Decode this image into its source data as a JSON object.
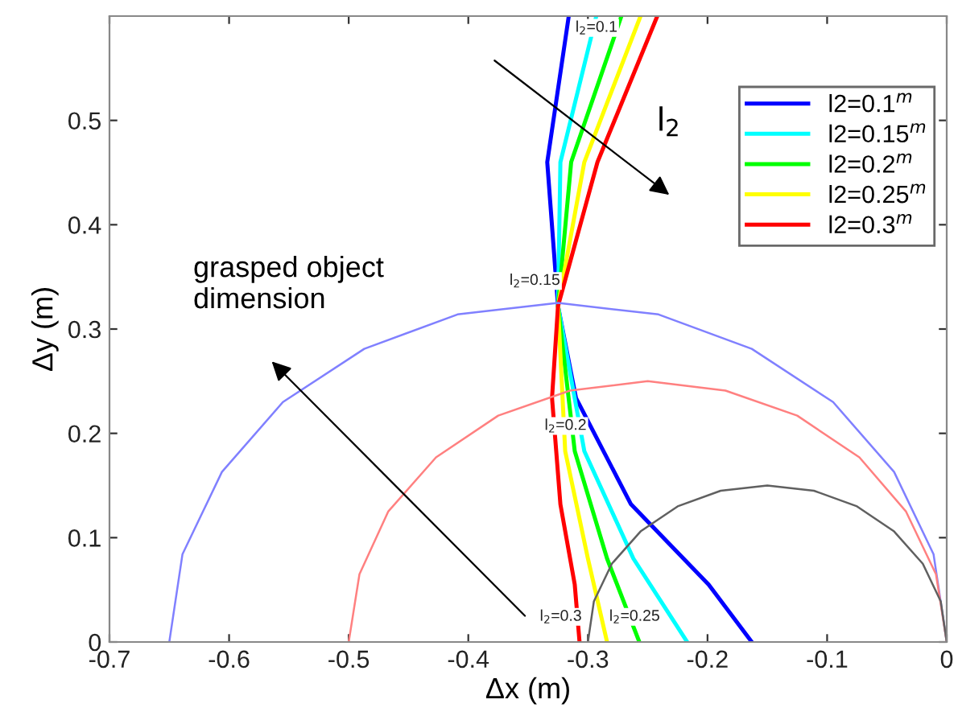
{
  "chart_data": {
    "type": "line",
    "xlabel": "Δx (m)",
    "ylabel": "Δy (m)",
    "xlim": [
      -0.7,
      0
    ],
    "ylim": [
      0,
      0.6
    ],
    "xticks": [
      -0.7,
      -0.6,
      -0.5,
      -0.4,
      -0.3,
      -0.2,
      -0.1,
      0
    ],
    "yticks": [
      0,
      0.1,
      0.2,
      0.3,
      0.4,
      0.5
    ],
    "grid": false,
    "legend": "right",
    "marker": "none",
    "line_style": "solid",
    "series": [
      {
        "name": "l2=0.1$^{m}$",
        "color": "#0000ff",
        "x": [
          -0.316,
          -0.334,
          -0.325,
          -0.31,
          -0.264,
          -0.199,
          -0.163
        ],
        "values": [
          0.6,
          0.46,
          0.322,
          0.234,
          0.132,
          0.055,
          0
        ]
      },
      {
        "name": "l2=0.15$^{m}$",
        "color": "#00ffff",
        "x": [
          -0.293,
          -0.323,
          -0.325,
          -0.303,
          -0.262,
          -0.217
        ],
        "values": [
          0.6,
          0.46,
          0.322,
          0.183,
          0.08,
          0
        ]
      },
      {
        "name": "l2=0.2$^{m}$",
        "color": "#00ff00",
        "x": [
          -0.272,
          -0.314,
          -0.325,
          -0.311,
          -0.284,
          -0.257
        ],
        "values": [
          0.6,
          0.46,
          0.322,
          0.183,
          0.08,
          0
        ]
      },
      {
        "name": "l2=0.25$^{m}$",
        "color": "#ffff00",
        "x": [
          -0.256,
          -0.303,
          -0.325,
          -0.319,
          -0.3,
          -0.284
        ],
        "values": [
          0.6,
          0.46,
          0.322,
          0.183,
          0.08,
          0
        ]
      },
      {
        "name": "l2=0.3$^{m}$",
        "color": "#ff0000",
        "x": [
          -0.242,
          -0.292,
          -0.325,
          -0.33,
          -0.323,
          -0.311,
          -0.307
        ],
        "values": [
          0.6,
          0.46,
          0.322,
          0.234,
          0.132,
          0.055,
          0
        ]
      },
      {
        "color": "#8080ff",
        "x": [
          0,
          -0.011,
          -0.044,
          -0.095,
          -0.163,
          -0.241,
          -0.325,
          -0.409,
          -0.487,
          -0.555,
          -0.606,
          -0.639,
          -0.65
        ],
        "values": [
          0,
          0.084,
          0.163,
          0.23,
          0.281,
          0.314,
          0.325,
          0.314,
          0.281,
          0.23,
          0.163,
          0.084,
          0
        ]
      },
      {
        "color": "#ff8080",
        "x": [
          0,
          -0.009,
          -0.034,
          -0.073,
          -0.125,
          -0.185,
          -0.25,
          -0.315,
          -0.375,
          -0.427,
          -0.467,
          -0.491,
          -0.5
        ],
        "values": [
          0,
          0.065,
          0.125,
          0.177,
          0.217,
          0.241,
          0.25,
          0.241,
          0.217,
          0.177,
          0.125,
          0.065,
          0
        ]
      },
      {
        "color": "#606060",
        "x": [
          0,
          -0.005,
          -0.02,
          -0.044,
          -0.075,
          -0.111,
          -0.15,
          -0.189,
          -0.225,
          -0.256,
          -0.28,
          -0.295,
          -0.3
        ],
        "values": [
          0,
          0.039,
          0.075,
          0.106,
          0.13,
          0.145,
          0.15,
          0.145,
          0.13,
          0.106,
          0.075,
          0.039,
          0
        ]
      }
    ],
    "annotations": [
      {
        "text": "l$_{2}$=0.1",
        "x": -0.316,
        "y": 0.6
      },
      {
        "text": "l$_{2}$=0.15",
        "x": -0.325,
        "y": 0.322
      },
      {
        "text": "l$_{2}$=0.2",
        "x": -0.303,
        "y": 0.183
      },
      {
        "text": "l$_{2}$=0.25",
        "x": -0.284,
        "y": 0
      },
      {
        "text": "l$_{2}$=0.3",
        "x": -0.307,
        "y": 0
      },
      "l$_{2}$",
      "grasped object\ndimension"
    ]
  }
}
